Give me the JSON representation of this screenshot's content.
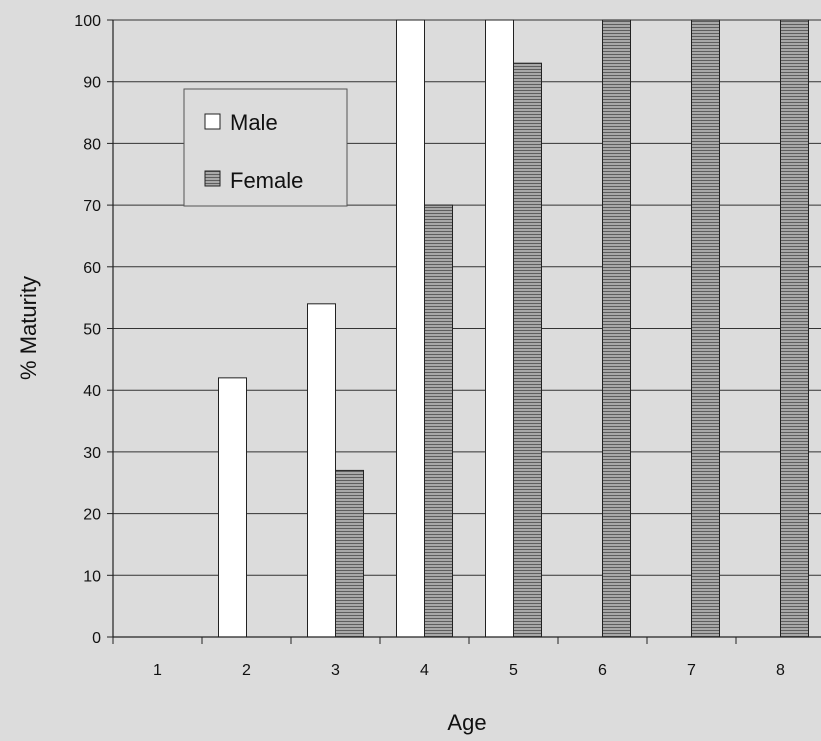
{
  "chart_data": {
    "type": "bar",
    "categories": [
      "1",
      "2",
      "3",
      "4",
      "5",
      "6",
      "7",
      "8"
    ],
    "series": [
      {
        "name": "Male",
        "values": [
          0,
          42,
          54,
          100,
          100,
          0,
          0,
          0
        ],
        "color": "#ffffff"
      },
      {
        "name": "Female",
        "values": [
          0,
          0,
          27,
          70,
          93,
          100,
          100,
          100
        ],
        "color": "#9a9a9a"
      }
    ],
    "xlabel": "Age",
    "ylabel": "% Maturity",
    "ylim": [
      0,
      100
    ],
    "yticks": [
      0,
      10,
      20,
      30,
      40,
      50,
      60,
      70,
      80,
      90,
      100
    ],
    "grid": true,
    "legend": "top-left"
  }
}
